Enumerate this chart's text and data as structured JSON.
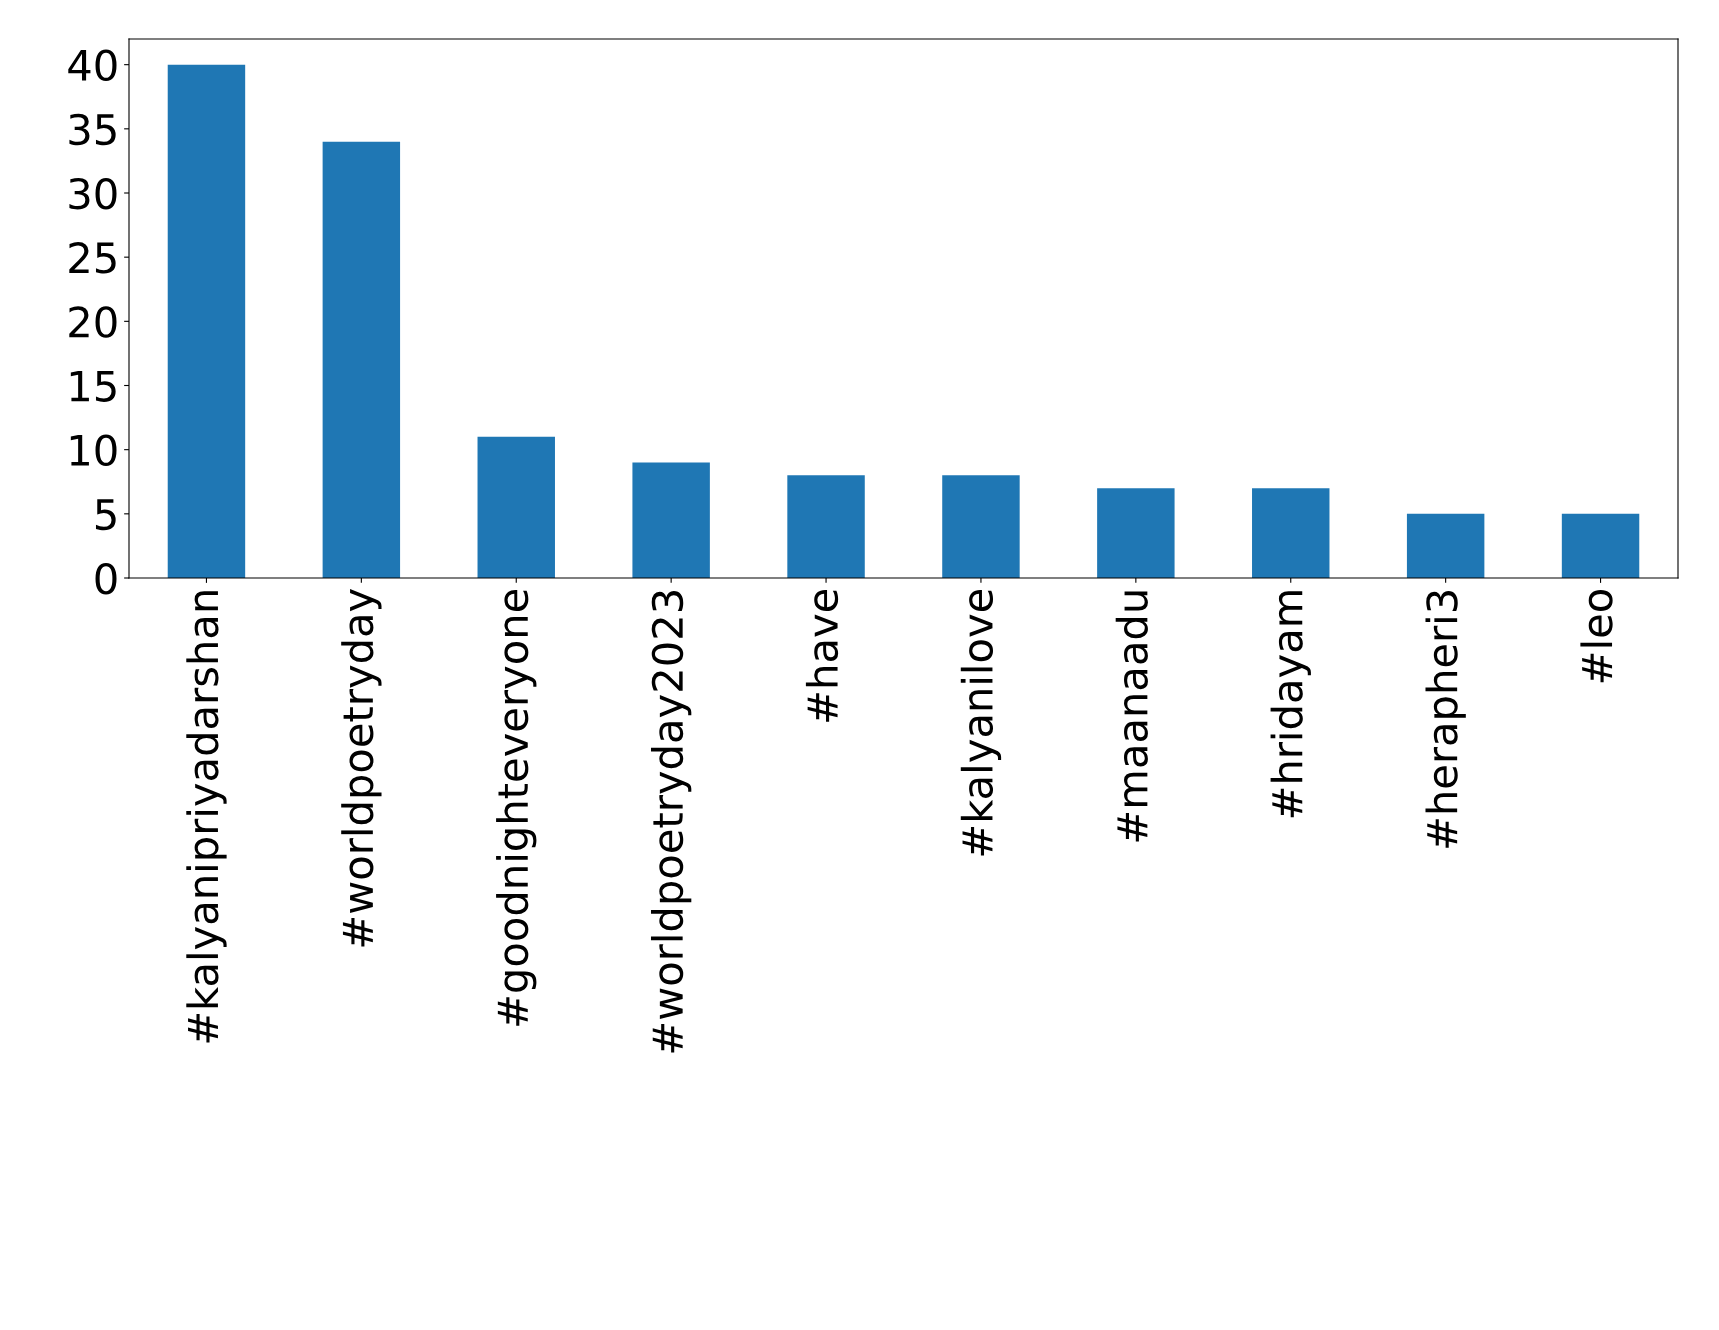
{
  "chart_data": {
    "type": "bar",
    "categories": [
      "#kalyanipriyadarshan",
      "#worldpoetryday",
      "#goodnighteveryone",
      "#worldpoetryday2023",
      "#have",
      "#kalyanilove",
      "#maanaadu",
      "#hridayam",
      "#herapheri3",
      "#leo"
    ],
    "values": [
      40,
      34,
      11,
      9,
      8,
      8,
      7,
      7,
      5,
      5
    ],
    "color": "#1f77b4",
    "ylim": [
      0,
      42
    ],
    "yticks": [
      0,
      5,
      10,
      15,
      20,
      25,
      30,
      35,
      40
    ],
    "grid": false,
    "legend": false
  }
}
